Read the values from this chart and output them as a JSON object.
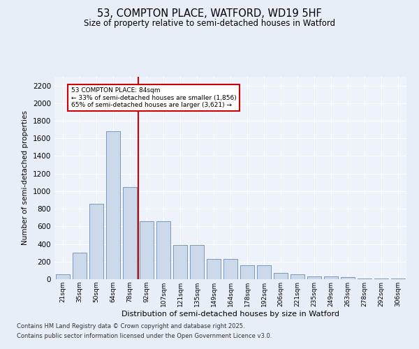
{
  "title1": "53, COMPTON PLACE, WATFORD, WD19 5HF",
  "title2": "Size of property relative to semi-detached houses in Watford",
  "xlabel": "Distribution of semi-detached houses by size in Watford",
  "ylabel": "Number of semi-detached properties",
  "bar_labels": [
    "21sqm",
    "35sqm",
    "50sqm",
    "64sqm",
    "78sqm",
    "92sqm",
    "107sqm",
    "121sqm",
    "135sqm",
    "149sqm",
    "164sqm",
    "178sqm",
    "192sqm",
    "206sqm",
    "221sqm",
    "235sqm",
    "249sqm",
    "263sqm",
    "278sqm",
    "292sqm",
    "306sqm"
  ],
  "bar_values": [
    55,
    300,
    860,
    1680,
    1050,
    660,
    660,
    390,
    390,
    230,
    230,
    155,
    155,
    75,
    55,
    35,
    35,
    20,
    5,
    5,
    5
  ],
  "bar_color": "#ccd9ea",
  "bar_edge_color": "#7799bb",
  "vline_x": 4,
  "vline_color": "#cc0000",
  "annotation_title": "53 COMPTON PLACE: 84sqm",
  "annotation_line1": "← 33% of semi-detached houses are smaller (1,856)",
  "annotation_line2": "65% of semi-detached houses are larger (3,621) →",
  "annotation_box_color": "#ffffff",
  "annotation_box_edge": "#cc0000",
  "ylim": [
    0,
    2300
  ],
  "yticks": [
    0,
    200,
    400,
    600,
    800,
    1000,
    1200,
    1400,
    1600,
    1800,
    2000,
    2200
  ],
  "footnote1": "Contains HM Land Registry data © Crown copyright and database right 2025.",
  "footnote2": "Contains public sector information licensed under the Open Government Licence v3.0.",
  "bg_color": "#e8eef8",
  "plot_bg_color": "#eef2fa"
}
